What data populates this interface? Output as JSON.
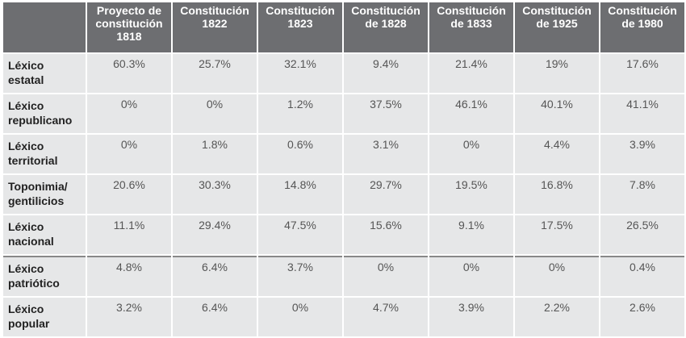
{
  "table": {
    "columns": [
      "Proyecto de constitución 1818",
      "Constitución 1822",
      "Constitución 1823",
      "Constitución de 1828",
      "Constitución de 1833",
      "Constitución de 1925",
      "Constitución de 1980"
    ],
    "rows": [
      {
        "label": "Léxico estatal",
        "cells": [
          "60.3%",
          "25.7%",
          "32.1%",
          "9.4%",
          "21.4%",
          "19%",
          "17.6%"
        ]
      },
      {
        "label": "Léxico republicano",
        "cells": [
          "0%",
          "0%",
          "1.2%",
          "37.5%",
          "46.1%",
          "40.1%",
          "41.1%"
        ]
      },
      {
        "label": "Léxico territorial",
        "cells": [
          "0%",
          "1.8%",
          "0.6%",
          "3.1%",
          "0%",
          "4.4%",
          "3.9%"
        ]
      },
      {
        "label": "Toponimia/ gentilicios",
        "cells": [
          "20.6%",
          "30.3%",
          "14.8%",
          "29.7%",
          "19.5%",
          "16.8%",
          "7.8%"
        ]
      },
      {
        "label": "Léxico nacional",
        "cells": [
          "11.1%",
          "29.4%",
          "47.5%",
          "15.6%",
          "9.1%",
          "17.5%",
          "26.5%"
        ]
      },
      {
        "label": "Léxico patriótico",
        "cells": [
          "4.8%",
          "6.4%",
          "3.7%",
          "0%",
          "0%",
          "0%",
          "0.4%"
        ]
      },
      {
        "label": "Léxico popular",
        "cells": [
          "3.2%",
          "6.4%",
          "0%",
          "4.7%",
          "3.9%",
          "2.2%",
          "2.6%"
        ]
      }
    ]
  }
}
